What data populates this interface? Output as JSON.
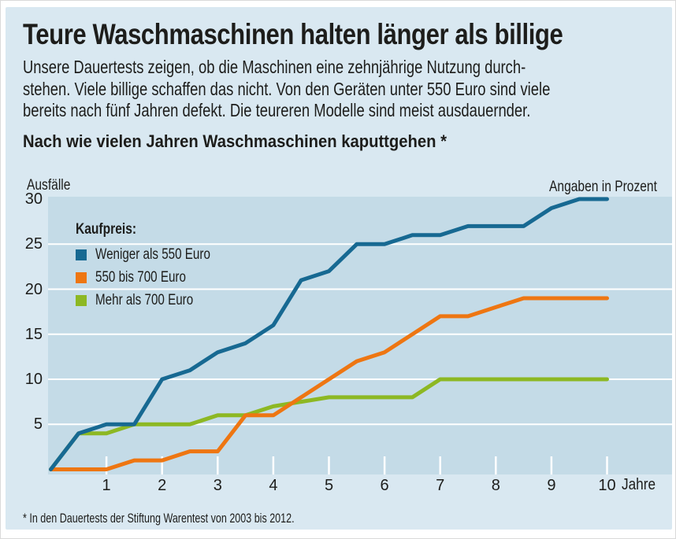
{
  "panel": {
    "title": "Teure Waschmaschinen halten länger als billige",
    "intro_lines": [
      "Unsere Dauertests zeigen, ob die Maschinen eine zehnjährige Nutzung durch-",
      "stehen. Viele billige schaffen das nicht. Von den Geräten unter 550 Euro sind viele",
      "bereits nach fünf Jahren defekt. Die teureren Modelle sind meist ausdauernder."
    ],
    "chart_heading": "Nach wie vielen Jahren Waschmaschinen kaputtgehen *",
    "footnote": "* In den Dauertests der Stiftung Warentest von 2003 bis 2012."
  },
  "chart_data": {
    "type": "line",
    "title": "Nach wie vielen Jahren Waschmaschinen kaputtgehen",
    "ylabel": "Ausfälle",
    "unit_note": "Angaben in Prozent",
    "xlabel": "Jahre",
    "legend_title": "Kaufpreis:",
    "legend_position": "top-left-inside",
    "grid": true,
    "x": [
      0,
      0.5,
      1,
      1.5,
      2,
      2.5,
      3,
      3.5,
      4,
      4.5,
      5,
      5.5,
      6,
      6.5,
      7,
      7.5,
      8,
      8.5,
      9,
      9.5,
      10
    ],
    "series": [
      {
        "name": "Weniger als 550 Euro",
        "color": "#176992",
        "values": [
          0,
          4,
          5,
          5,
          10,
          11,
          13,
          14,
          16,
          21,
          22,
          25,
          25,
          26,
          26,
          27,
          27,
          27,
          29,
          30,
          30
        ]
      },
      {
        "name": "550 bis 700 Euro",
        "color": "#ee7612",
        "values": [
          0,
          0,
          0,
          1,
          1,
          2,
          2,
          6,
          6,
          8,
          10,
          12,
          13,
          15,
          17,
          17,
          18,
          19,
          19,
          19,
          19
        ]
      },
      {
        "name": "Mehr als 700 Euro",
        "color": "#8db823",
        "values": [
          0,
          4,
          4,
          5,
          5,
          5,
          6,
          6,
          7,
          7.5,
          8,
          8,
          8,
          8,
          10,
          10,
          10,
          10,
          10,
          10,
          10
        ]
      }
    ],
    "yticks": [
      30,
      25,
      20,
      15,
      10,
      5
    ],
    "gridlines": [
      25,
      20,
      15,
      10,
      5
    ],
    "xticks": [
      1,
      2,
      3,
      4,
      5,
      6,
      7,
      8,
      9,
      10
    ],
    "ylim": [
      0,
      30
    ],
    "xlim": [
      0,
      10
    ]
  },
  "colors": {
    "panel_bg": "#d9e8f1",
    "plot_bg": "#c4dbe7",
    "grid": "#ffffff",
    "text": "#1d1d1b"
  }
}
